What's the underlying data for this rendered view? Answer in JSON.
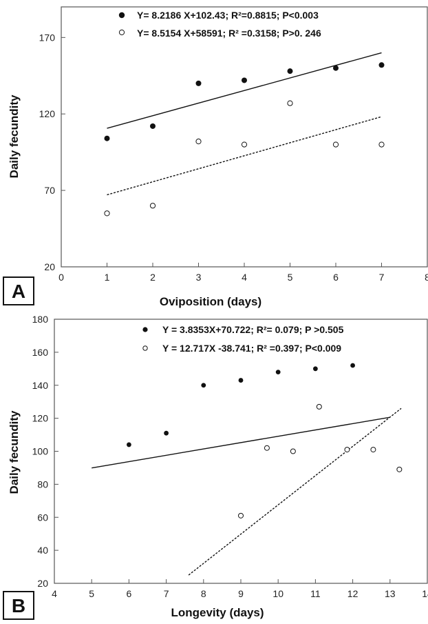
{
  "chart_data": [
    {
      "type": "scatter",
      "panel_label": "A",
      "xlabel": "Oviposition (days)",
      "ylabel": "Daily fecundity",
      "xlim": [
        0,
        8
      ],
      "ylim": [
        20,
        190
      ],
      "xticks": [
        0,
        1,
        2,
        3,
        4,
        5,
        6,
        7,
        8
      ],
      "yticks": [
        20,
        70,
        120,
        170
      ],
      "grid": false,
      "legend_position": "top",
      "series": [
        {
          "marker": "filled",
          "legend": "Y= 8.2186 X+102.43; R²=0.8815; P<0.003",
          "x": [
            1,
            2,
            3,
            4,
            5,
            6,
            7
          ],
          "y": [
            104,
            112,
            140,
            142,
            148,
            150,
            152
          ],
          "trend": {
            "style": "solid",
            "x": [
              1,
              7
            ],
            "y": [
              110.6,
              160.0
            ]
          }
        },
        {
          "marker": "open",
          "legend": "Y= 8.5154 X+58591; R² =0.3158; P>0. 246",
          "x": [
            1,
            2,
            3,
            4,
            5,
            6,
            7
          ],
          "y": [
            55,
            60,
            102,
            100,
            127,
            100,
            100
          ],
          "trend": {
            "style": "dashed",
            "x": [
              1,
              7
            ],
            "y": [
              67.1,
              118.2
            ]
          }
        }
      ]
    },
    {
      "type": "scatter",
      "panel_label": "B",
      "xlabel": "Longevity (days)",
      "ylabel": "Daily fecundity",
      "xlim": [
        4,
        14
      ],
      "ylim": [
        20,
        180
      ],
      "xticks": [
        4,
        5,
        6,
        7,
        8,
        9,
        10,
        11,
        12,
        13,
        14
      ],
      "yticks": [
        20,
        40,
        60,
        80,
        100,
        120,
        140,
        160,
        180
      ],
      "grid": false,
      "legend_position": "top",
      "series": [
        {
          "marker": "filled",
          "legend": "Y = 3.8353X+70.722; R²= 0.079; P >0.505",
          "x": [
            6,
            7,
            8,
            9,
            10,
            11,
            12
          ],
          "y": [
            104,
            111,
            140,
            143,
            148,
            150,
            152
          ],
          "trend": {
            "style": "solid",
            "x": [
              5,
              13
            ],
            "y": [
              89.9,
              120.6
            ]
          }
        },
        {
          "marker": "open",
          "legend": "Y = 12.717X -38.741; R² =0.397; P<0.009",
          "x": [
            9,
            9.7,
            10.4,
            11.1,
            11.85,
            12.55,
            13.25
          ],
          "y": [
            61,
            102,
            100,
            127,
            101,
            101,
            89
          ],
          "trend": {
            "style": "dashed",
            "x": [
              7.6,
              13.3
            ],
            "y": [
              25,
              126
            ]
          }
        }
      ]
    }
  ]
}
